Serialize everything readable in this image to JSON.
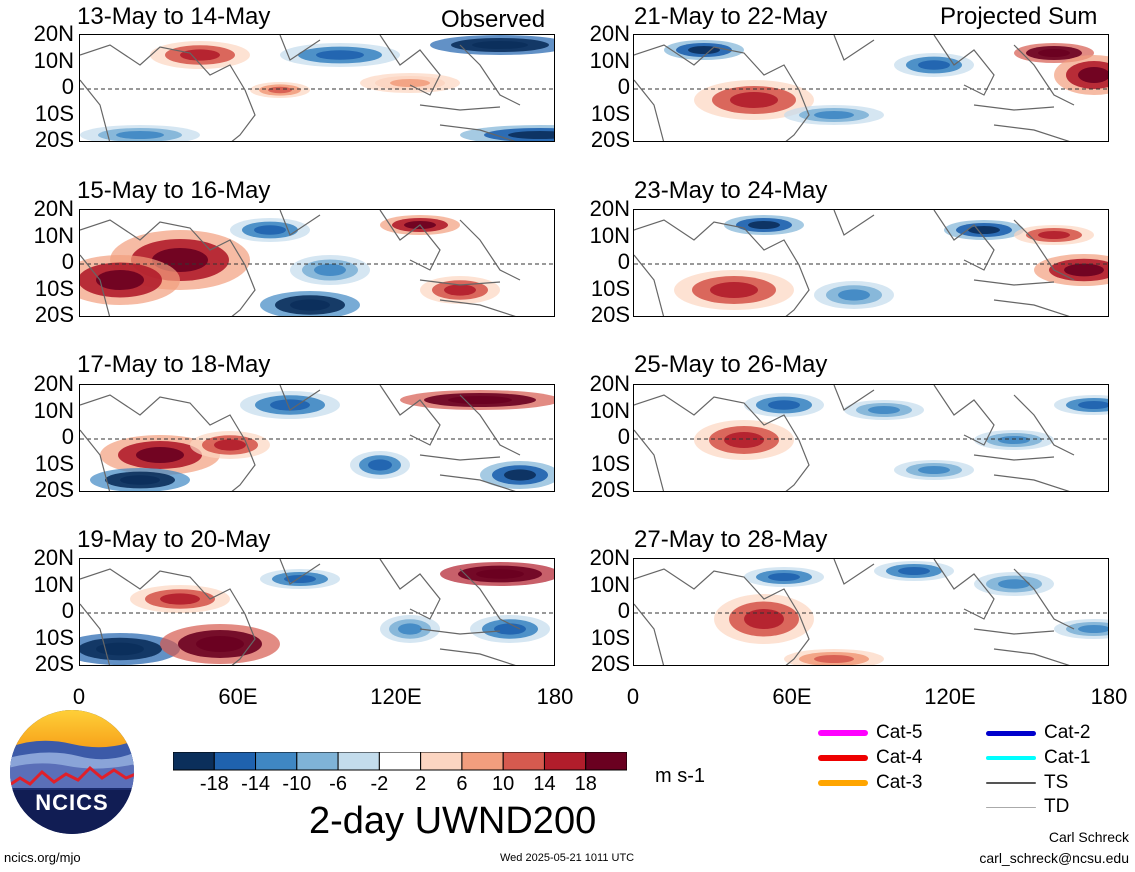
{
  "left_tag": "Observed",
  "right_tag": "Projected Sum",
  "panels_left": [
    {
      "title": "13-May to 14-May"
    },
    {
      "title": "15-May to 16-May"
    },
    {
      "title": "17-May to 18-May"
    },
    {
      "title": "19-May to 20-May"
    }
  ],
  "panels_right": [
    {
      "title": "21-May to 22-May"
    },
    {
      "title": "23-May to 24-May"
    },
    {
      "title": "25-May to 26-May"
    },
    {
      "title": "27-May to 28-May"
    }
  ],
  "lat_labels": [
    "20N",
    "10N",
    "0",
    "10S",
    "20S"
  ],
  "lon_labels": [
    "0",
    "60E",
    "120E",
    "180"
  ],
  "colorbar": {
    "ticks": [
      "-18",
      "-14",
      "-10",
      "-6",
      "-2",
      "2",
      "6",
      "10",
      "14",
      "18"
    ],
    "colors": [
      "#0b2f5b",
      "#1f62ae",
      "#3f87c3",
      "#7fb3d7",
      "#c3dcec",
      "#ffffff",
      "#fcd5c1",
      "#f29e7e",
      "#d65a4f",
      "#b11d2b",
      "#6a0020"
    ],
    "units": "m s-1"
  },
  "main_title": "2-day UWND200",
  "logo_text": "NCICS",
  "legend": [
    {
      "label": "Cat-5",
      "color": "#ff00ff"
    },
    {
      "label": "Cat-4",
      "color": "#ee0000"
    },
    {
      "label": "Cat-3",
      "color": "#ffa500"
    },
    {
      "label": "Cat-2",
      "color": "#0000cc"
    },
    {
      "label": "Cat-1",
      "color": "#00ffff"
    },
    {
      "label": "TS",
      "color": "#555555"
    },
    {
      "label": "TD",
      "color": "#aaaaaa"
    }
  ],
  "footer": {
    "url": "ncics.org/mjo",
    "timestamp": "Wed 2025-05-21 1011 UTC",
    "author": "Carl Schreck",
    "email": "carl_schreck@ncsu.edu"
  }
}
